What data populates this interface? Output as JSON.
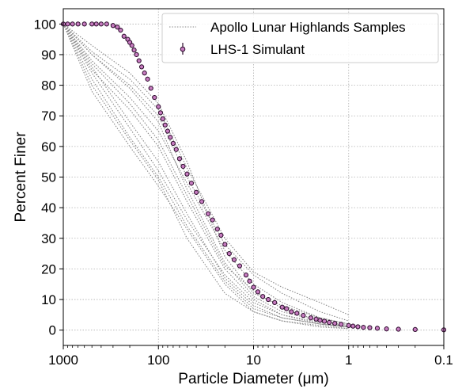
{
  "chart_data": {
    "type": "scatter",
    "title": "",
    "xlabel": "Particle Diameter (μm)",
    "ylabel": "Percent Finer",
    "x_scale": "log",
    "x_reversed": true,
    "xlim": [
      1000,
      0.1
    ],
    "ylim": [
      -5,
      105
    ],
    "x_ticks": [
      1000,
      100,
      10,
      1,
      0.1
    ],
    "x_tick_labels": [
      "1000",
      "100",
      "10",
      "1",
      "0.1"
    ],
    "y_ticks": [
      0,
      10,
      20,
      30,
      40,
      50,
      60,
      70,
      80,
      90,
      100
    ],
    "y_tick_labels": [
      "0",
      "10",
      "20",
      "30",
      "40",
      "50",
      "60",
      "70",
      "80",
      "90",
      "100"
    ],
    "grid": true,
    "legend_position": "top-right",
    "series": [
      {
        "name": "Apollo Lunar Highlands Samples",
        "style": "dotted-line",
        "color": "#8a8a8a",
        "curves": [
          {
            "x": [
              1000,
              500,
              200,
              100,
              50,
              20,
              10,
              5,
              2,
              1
            ],
            "y": [
              100,
              90,
              80,
              70,
              50,
              28,
              18,
              12,
              6,
              3
            ]
          },
          {
            "x": [
              1000,
              500,
              200,
              100,
              50,
              20,
              10,
              5,
              2,
              1
            ],
            "y": [
              100,
              85,
              72,
              60,
              42,
              20,
              10,
              5,
              2,
              1
            ]
          },
          {
            "x": [
              1000,
              500,
              200,
              100,
              50,
              20,
              10,
              5,
              2,
              1
            ],
            "y": [
              100,
              78,
              60,
              47,
              33,
              15,
              6,
              3,
              1.5,
              0.5
            ]
          },
          {
            "x": [
              1000,
              500,
              200,
              100,
              50,
              20,
              10,
              5,
              2,
              1
            ],
            "y": [
              100,
              88,
              76,
              65,
              48,
              26,
              15,
              9,
              4,
              2
            ]
          },
          {
            "x": [
              1000,
              500,
              200,
              100,
              50,
              20,
              10,
              5,
              2,
              1
            ],
            "y": [
              100,
              86,
              68,
              55,
              38,
              17,
              8,
              4,
              2,
              1
            ]
          },
          {
            "x": [
              1000,
              500,
              200,
              100,
              50,
              20,
              10,
              5,
              2,
              1
            ],
            "y": [
              100,
              91,
              82,
              72,
              53,
              30,
              19,
              14,
              9,
              5
            ]
          },
          {
            "x": [
              1000,
              500,
              200,
              100,
              50,
              20,
              10,
              5,
              2,
              1
            ],
            "y": [
              100,
              84,
              66,
              52,
              36,
              18,
              9,
              5,
              2.5,
              1
            ]
          },
          {
            "x": [
              1000,
              500,
              200,
              100,
              50,
              20,
              10,
              5,
              2,
              1
            ],
            "y": [
              100,
              82,
              63,
              50,
              34,
              16,
              7,
              4,
              2,
              1
            ]
          },
          {
            "x": [
              1000,
              500,
              200,
              100,
              50,
              20,
              10,
              5,
              2,
              1
            ],
            "y": [
              100,
              90,
              79,
              68,
              46,
              22,
              11,
              6,
              3,
              1
            ]
          },
          {
            "x": [
              1000,
              500,
              200,
              100,
              50,
              20,
              10,
              5,
              2,
              1
            ],
            "y": [
              100,
              93,
              84,
              74,
              55,
              24,
              12,
              8,
              4,
              2
            ]
          },
          {
            "x": [
              1000,
              500,
              200,
              100,
              50,
              20,
              10,
              5,
              2,
              1
            ],
            "y": [
              100,
              87,
              74,
              62,
              44,
              21,
              13,
              7,
              3,
              1.5
            ]
          },
          {
            "x": [
              1000,
              500,
              200,
              100,
              50,
              20,
              10,
              5,
              2,
              1
            ],
            "y": [
              100,
              80,
              62,
              49,
              30,
              12,
              6,
              3,
              1,
              0.5
            ]
          }
        ]
      },
      {
        "name": "LHS-1 Simulant",
        "style": "markers-with-errorbars",
        "color": "#c77cc0",
        "x": [
          1000,
          900,
          800,
          700,
          600,
          500,
          450,
          400,
          350,
          300,
          270,
          250,
          230,
          210,
          200,
          190,
          180,
          170,
          160,
          150,
          140,
          130,
          120,
          110,
          100,
          95,
          90,
          85,
          80,
          75,
          70,
          65,
          60,
          55,
          50,
          45,
          40,
          35,
          30,
          27,
          24,
          22,
          20,
          18,
          16,
          14,
          12,
          11,
          10,
          9,
          8,
          7,
          6,
          5,
          4.5,
          4,
          3.5,
          3,
          2.5,
          2.2,
          2,
          1.8,
          1.6,
          1.4,
          1.2,
          1,
          0.9,
          0.8,
          0.7,
          0.6,
          0.5,
          0.4,
          0.3,
          0.2,
          0.1
        ],
        "y": [
          100,
          100,
          100,
          100,
          100,
          100,
          100,
          100,
          100,
          99.5,
          99,
          98,
          96,
          95,
          94,
          93,
          91.5,
          90,
          88,
          86,
          84,
          82,
          79,
          76,
          73,
          71,
          69,
          67,
          65,
          63,
          61,
          59,
          56,
          53.5,
          51,
          48,
          45,
          42,
          38,
          36,
          33,
          31,
          28,
          25,
          23,
          21,
          18,
          16,
          14,
          12.5,
          11,
          10,
          9,
          7.5,
          7,
          6,
          5.5,
          4.8,
          4,
          3.6,
          3.2,
          2.9,
          2.5,
          2.2,
          1.9,
          1.5,
          1.3,
          1.1,
          0.9,
          0.8,
          0.6,
          0.4,
          0.3,
          0.2,
          0.1
        ]
      }
    ]
  }
}
